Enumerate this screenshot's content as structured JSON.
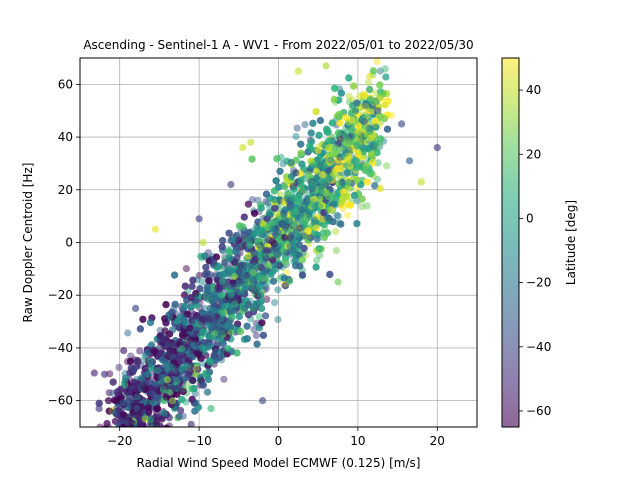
{
  "chart_data": {
    "type": "scatter",
    "title": "Ascending - Sentinel-1 A - WV1 - From 2022/05/01 to 2022/05/30",
    "xlabel": "Radial Wind Speed Model ECMWF (0.125) [m/s]",
    "ylabel": "Raw Doppler Centroid [Hz]",
    "xlim": [
      -25,
      25
    ],
    "ylim": [
      -70,
      70
    ],
    "xticks": [
      -20,
      -10,
      0,
      10,
      20
    ],
    "yticks": [
      -60,
      -40,
      -20,
      0,
      20,
      40,
      60
    ],
    "grid": true,
    "colorbar": {
      "label": "Latitude [deg]",
      "colormap": "viridis",
      "range": [
        -65,
        50
      ],
      "ticks": [
        -60,
        -40,
        -20,
        0,
        20,
        40
      ]
    },
    "point_alpha": 0.5,
    "trend": {
      "slope": 3.6,
      "intercept": 2,
      "noise_sd_hz": 11
    },
    "density_note": "approx. 9000 points; dense cloud along trend from (-20,-55) to (12,55); low latitudes concentrated at lower left, high latitudes at upper right",
    "points": [
      {
        "x": -23.2,
        "y": -49.5,
        "lat": -52
      },
      {
        "x": -22.6,
        "y": -63.0,
        "lat": -45
      },
      {
        "x": -21.9,
        "y": -50.0,
        "lat": -48
      },
      {
        "x": -19.5,
        "y": -41.0,
        "lat": -55
      },
      {
        "x": -18.0,
        "y": -25.0,
        "lat": -40
      },
      {
        "x": -15.5,
        "y": 5.0,
        "lat": 45
      },
      {
        "x": -14.0,
        "y": -52.0,
        "lat": 30
      },
      {
        "x": -12.5,
        "y": -66.0,
        "lat": -35
      },
      {
        "x": -11.0,
        "y": -69.0,
        "lat": -50
      },
      {
        "x": -10.0,
        "y": 9.0,
        "lat": -42
      },
      {
        "x": -9.5,
        "y": 0.0,
        "lat": 38
      },
      {
        "x": -8.5,
        "y": -63.0,
        "lat": 12
      },
      {
        "x": -6.0,
        "y": 22.0,
        "lat": -40
      },
      {
        "x": -4.5,
        "y": 36.0,
        "lat": 42
      },
      {
        "x": -3.5,
        "y": 38.0,
        "lat": 40
      },
      {
        "x": -2.0,
        "y": -60.0,
        "lat": -38
      },
      {
        "x": 2.5,
        "y": 65.0,
        "lat": 40
      },
      {
        "x": 6.0,
        "y": 67.0,
        "lat": 35
      },
      {
        "x": 7.5,
        "y": -15.0,
        "lat": 25
      },
      {
        "x": 11.5,
        "y": 63.0,
        "lat": 45
      },
      {
        "x": 12.5,
        "y": 50.0,
        "lat": -35
      },
      {
        "x": 15.5,
        "y": 45.0,
        "lat": -38
      },
      {
        "x": 16.5,
        "y": 31.0,
        "lat": -30
      },
      {
        "x": 18.0,
        "y": 23.0,
        "lat": 40
      },
      {
        "x": 20.0,
        "y": 36.0,
        "lat": -45
      }
    ]
  }
}
